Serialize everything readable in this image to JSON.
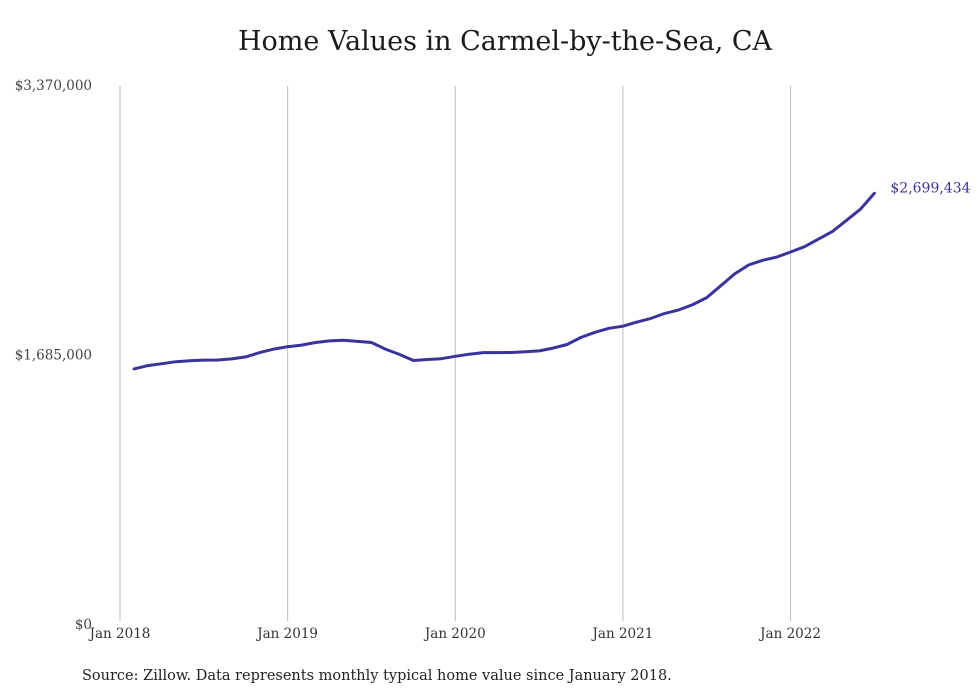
{
  "chart_data": {
    "type": "line",
    "title": "Home Values in Carmel-by-the-Sea, CA",
    "xlabel": "",
    "ylabel": "",
    "y_ticks": [
      {
        "value": 3370000,
        "label": "$3,370,000"
      },
      {
        "value": 1685000,
        "label": "$1,685,000"
      },
      {
        "value": 0,
        "label": "$0"
      }
    ],
    "ylim": [
      0,
      3370000
    ],
    "x_ticks": [
      {
        "date": "2018-01",
        "label": "Jan 2018"
      },
      {
        "date": "2019-01",
        "label": "Jan 2019"
      },
      {
        "date": "2020-01",
        "label": "Jan 2020"
      },
      {
        "date": "2021-01",
        "label": "Jan 2021"
      },
      {
        "date": "2022-01",
        "label": "Jan 2022"
      }
    ],
    "xlim": [
      "2018-01",
      "2022-08"
    ],
    "grid": "vertical",
    "line_color": "#3a339b",
    "series": [
      {
        "dates": [
          "2018-02",
          "2018-03",
          "2018-04",
          "2018-05",
          "2018-06",
          "2018-07",
          "2018-08",
          "2018-09",
          "2018-10",
          "2018-11",
          "2018-12",
          "2019-01",
          "2019-02",
          "2019-03",
          "2019-04",
          "2019-05",
          "2019-06",
          "2019-07",
          "2019-08",
          "2019-09",
          "2019-10",
          "2019-11",
          "2019-12",
          "2020-01",
          "2020-02",
          "2020-03",
          "2020-04",
          "2020-05",
          "2020-06",
          "2020-07",
          "2020-08",
          "2020-09",
          "2020-10",
          "2020-11",
          "2020-12",
          "2021-01",
          "2021-02",
          "2021-03",
          "2021-04",
          "2021-05",
          "2021-06",
          "2021-07",
          "2021-08",
          "2021-09",
          "2021-10",
          "2021-11",
          "2021-12",
          "2022-01",
          "2022-02",
          "2022-03",
          "2022-04",
          "2022-05",
          "2022-06",
          "2022-07"
        ],
        "values": [
          1601000,
          1622000,
          1634000,
          1646000,
          1652000,
          1656000,
          1657000,
          1664000,
          1676000,
          1703000,
          1725000,
          1740000,
          1750000,
          1766000,
          1776000,
          1780000,
          1773000,
          1766000,
          1725000,
          1692000,
          1654000,
          1660000,
          1665000,
          1680000,
          1693000,
          1703000,
          1703000,
          1704000,
          1708000,
          1714000,
          1731000,
          1754000,
          1798000,
          1830000,
          1855000,
          1868000,
          1894000,
          1917000,
          1948000,
          1970000,
          2003000,
          2047000,
          2121000,
          2195000,
          2251000,
          2280000,
          2300000,
          2332000,
          2365000,
          2413000,
          2461000,
          2530000,
          2600000,
          2699434
        ]
      }
    ],
    "end_label": "$2,699,434"
  },
  "footer": {
    "source": "Source: Zillow. Data represents monthly typical home value since January 2018."
  }
}
